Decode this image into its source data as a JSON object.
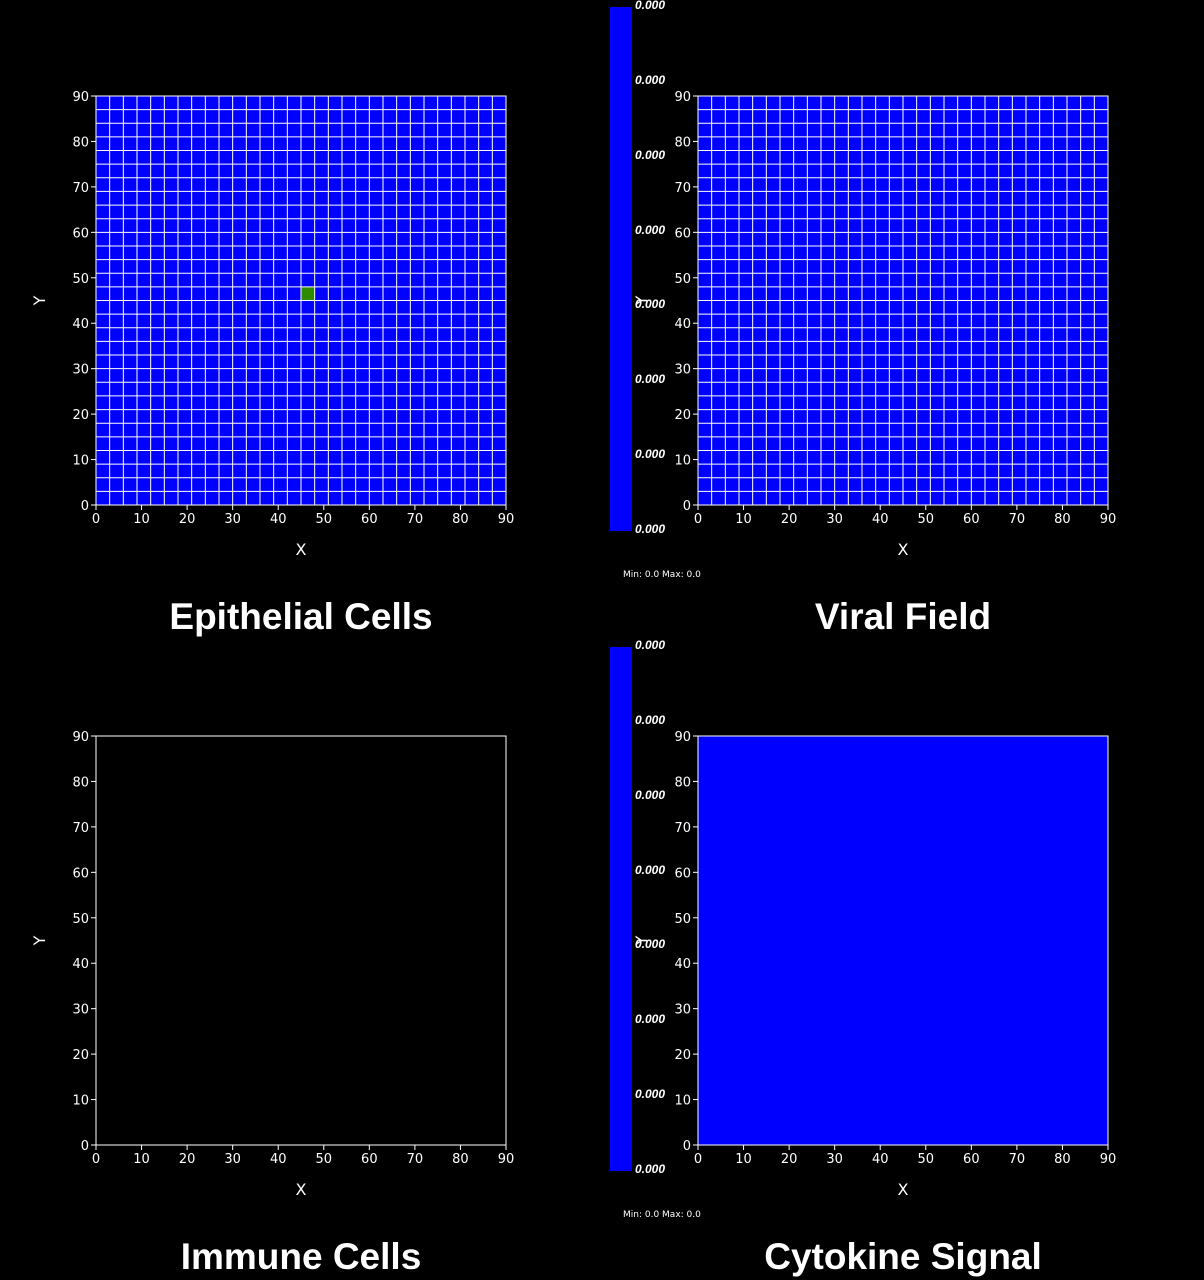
{
  "panels": [
    {
      "id": "epithelial",
      "title": "Epithelial Cells",
      "xlabel": "X",
      "ylabel": "Y",
      "ticks": [
        "0",
        "10",
        "20",
        "30",
        "40",
        "50",
        "60",
        "70",
        "80",
        "90"
      ],
      "fill_color": "#0000ff",
      "grid": true,
      "grid_color": "#ffffff",
      "grid_cells": 30,
      "highlight_cell": {
        "col": 15,
        "row": 15,
        "color": "#2e8b00"
      }
    },
    {
      "id": "viral",
      "title": "Viral Field",
      "xlabel": "X",
      "ylabel": "Y",
      "ticks": [
        "0",
        "10",
        "20",
        "30",
        "40",
        "50",
        "60",
        "70",
        "80",
        "90"
      ],
      "fill_color": "#0000ff",
      "grid": true,
      "grid_color": "#ffffff",
      "grid_cells": 30,
      "colorbar": {
        "color": "#0000ff",
        "labels": [
          "0.000",
          "0.000",
          "0.000",
          "0.000",
          "0.000",
          "0.000",
          "0.000",
          "0.000"
        ],
        "minmax": "Min: 0.0 Max: 0.0"
      }
    },
    {
      "id": "immune",
      "title": "Immune Cells",
      "xlabel": "X",
      "ylabel": "Y",
      "ticks": [
        "0",
        "10",
        "20",
        "30",
        "40",
        "50",
        "60",
        "70",
        "80",
        "90"
      ],
      "fill_color": "#000000",
      "grid": false
    },
    {
      "id": "cytokine",
      "title": "Cytokine Signal",
      "xlabel": "X",
      "ylabel": "Y",
      "ticks": [
        "0",
        "10",
        "20",
        "30",
        "40",
        "50",
        "60",
        "70",
        "80",
        "90"
      ],
      "fill_color": "#0000ff",
      "grid": false,
      "colorbar": {
        "color": "#0000ff",
        "labels": [
          "0.000",
          "0.000",
          "0.000",
          "0.000",
          "0.000",
          "0.000",
          "0.000",
          "0.000"
        ],
        "minmax": "Min: 0.0 Max: 0.0"
      }
    }
  ]
}
